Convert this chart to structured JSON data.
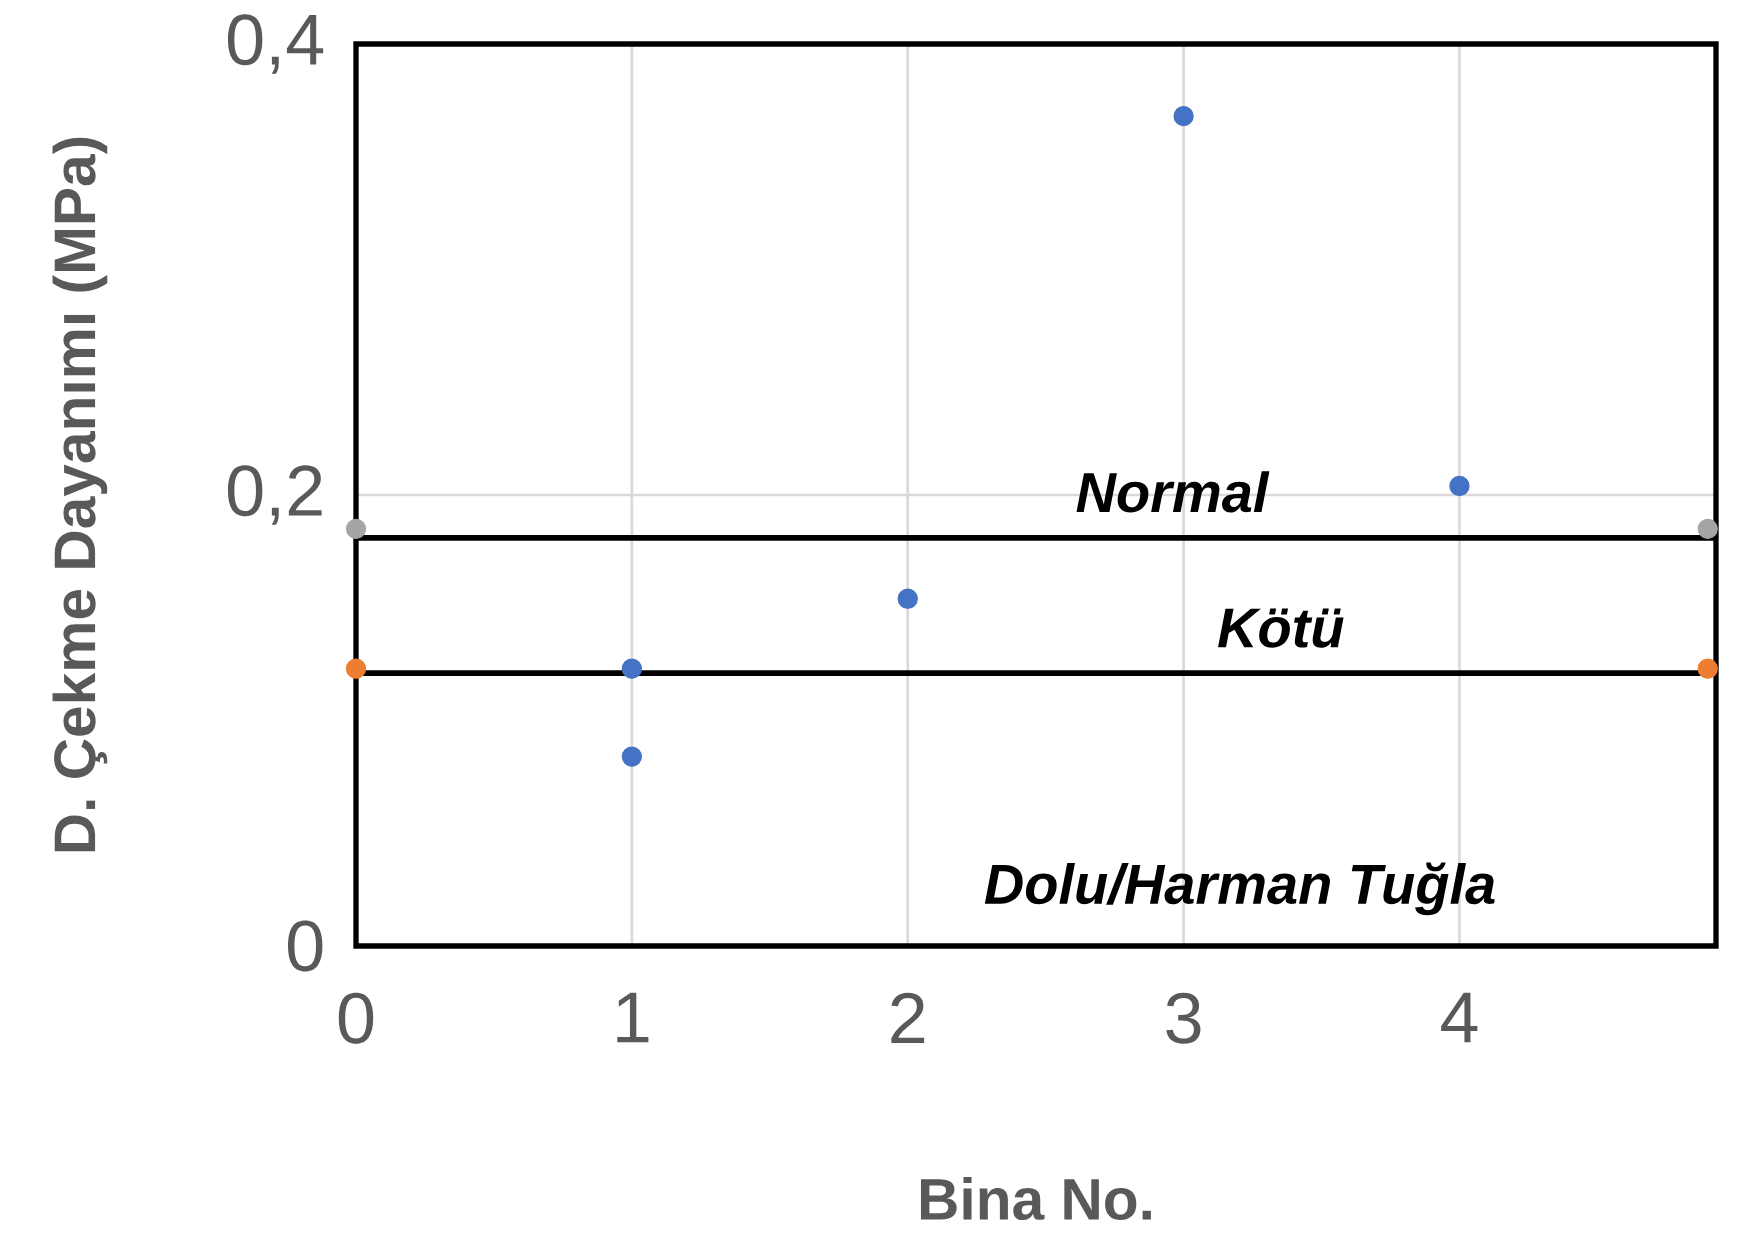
{
  "chart_data": {
    "type": "scatter",
    "xlabel": "Bina No.",
    "ylabel": "D. Çekme Dayanımı (MPa)",
    "xlim": [
      0,
      4.93
    ],
    "ylim": [
      0,
      0.4
    ],
    "xticks": [
      0,
      1,
      2,
      3,
      4
    ],
    "yticks": [
      0,
      {
        "value": 0.2,
        "label": "0,2"
      },
      {
        "value": 0.4,
        "label": "0,4"
      }
    ],
    "grid": true,
    "marker": "circle",
    "series": [
      {
        "color": "#4472c4",
        "x": [
          1,
          1,
          2,
          3,
          4
        ],
        "values": [
          0.123,
          0.084,
          0.154,
          0.368,
          0.204
        ]
      },
      {
        "color": "#a5a5a5",
        "x": [
          0,
          4.9
        ],
        "values": [
          0.185,
          0.185
        ]
      },
      {
        "color": "#ed7d31",
        "x": [
          0,
          4.9
        ],
        "values": [
          0.123,
          0.123
        ]
      }
    ],
    "ref_lines": [
      {
        "axis": "y",
        "value": 0.181,
        "color": "#000000"
      },
      {
        "axis": "y",
        "value": 0.121,
        "color": "#000000"
      }
    ],
    "annotations": [
      "Normal",
      "Kötü",
      "Dolu/Harman Tuğla"
    ]
  }
}
